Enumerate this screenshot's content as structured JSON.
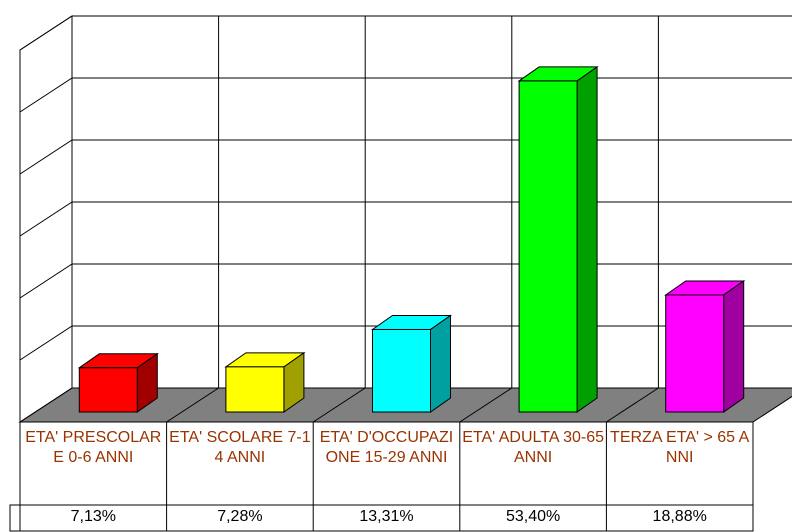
{
  "chart_data": {
    "type": "bar3d",
    "categories": [
      "ETA' PRESCOLARE 0-6 ANNI",
      "ETA' SCOLARE 7-14 ANNI",
      "ETA' D'OCCUPAZIONE 15-29 ANNI",
      "ETA' ADULTA 30-65 ANNI",
      "TERZA ETA' > 65 ANNI"
    ],
    "values": [
      7.13,
      7.28,
      13.31,
      53.4,
      18.88
    ],
    "value_labels": [
      "7,13%",
      "7,28%",
      "13,31%",
      "53,40%",
      "18,88%"
    ],
    "colors": [
      "#ff0000",
      "#ffff00",
      "#00ffff",
      "#00ff00",
      "#ff00ff"
    ],
    "side_colors": [
      "#a00000",
      "#a0a000",
      "#00a0a0",
      "#00a000",
      "#a000a0"
    ],
    "ylim": [
      0,
      60
    ],
    "yticks": [
      0,
      10,
      20,
      30,
      40,
      50,
      60
    ],
    "grid": true
  }
}
